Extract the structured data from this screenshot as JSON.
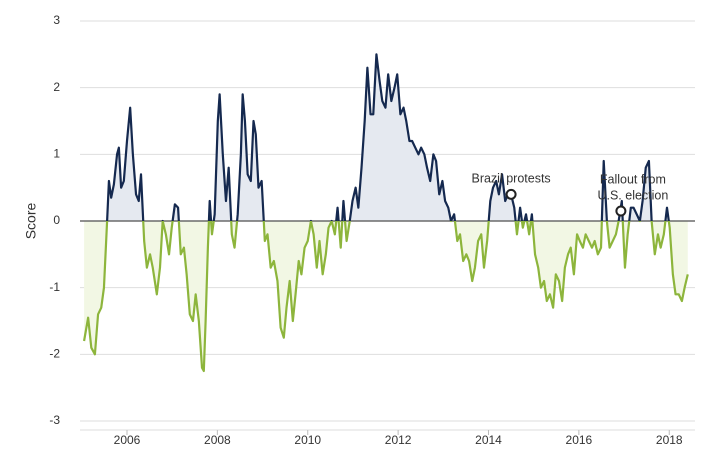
{
  "chart_data": {
    "type": "line",
    "ylabel": "Score",
    "xlim": [
      2004.96,
      2018.57
    ],
    "ylim": [
      -3,
      3
    ],
    "xticks": [
      2006,
      2008,
      2010,
      2012,
      2014,
      2016,
      2018
    ],
    "yticks": [
      -3,
      -2,
      -1,
      0,
      1,
      2,
      3
    ],
    "grid": true,
    "colors": {
      "positive_line": "#15294f",
      "negative_line": "#8db53c",
      "positive_fill": "#e5e9f0",
      "negative_fill": "#f2f7e4",
      "zero_line": "#6b6b6b",
      "grid": "#dedede"
    },
    "x": [
      2005.05,
      2005.14,
      2005.21,
      2005.29,
      2005.36,
      2005.43,
      2005.49,
      2005.56,
      2005.6,
      2005.65,
      2005.71,
      2005.78,
      2005.82,
      2005.87,
      2005.93,
      2006.0,
      2006.07,
      2006.13,
      2006.2,
      2006.26,
      2006.31,
      2006.38,
      2006.44,
      2006.51,
      2006.57,
      2006.66,
      2006.73,
      2006.79,
      2006.86,
      2006.93,
      2006.99,
      2007.06,
      2007.13,
      2007.19,
      2007.26,
      2007.32,
      2007.39,
      2007.46,
      2007.52,
      2007.59,
      2007.66,
      2007.7,
      2007.74,
      2007.79,
      2007.83,
      2007.88,
      2007.94,
      2008.01,
      2008.05,
      2008.12,
      2008.19,
      2008.25,
      2008.32,
      2008.38,
      2008.45,
      2008.52,
      2008.56,
      2008.61,
      2008.67,
      2008.74,
      2008.8,
      2008.85,
      2008.91,
      2008.98,
      2009.05,
      2009.11,
      2009.18,
      2009.25,
      2009.33,
      2009.4,
      2009.47,
      2009.53,
      2009.6,
      2009.67,
      2009.73,
      2009.8,
      2009.86,
      2009.93,
      2010.0,
      2010.07,
      2010.13,
      2010.2,
      2010.26,
      2010.33,
      2010.4,
      2010.46,
      2010.53,
      2010.6,
      2010.66,
      2010.73,
      2010.79,
      2010.86,
      2010.93,
      2010.99,
      2011.06,
      2011.12,
      2011.19,
      2011.26,
      2011.32,
      2011.39,
      2011.45,
      2011.52,
      2011.59,
      2011.65,
      2011.72,
      2011.78,
      2011.85,
      2011.92,
      2011.98,
      2012.05,
      2012.12,
      2012.18,
      2012.25,
      2012.31,
      2012.38,
      2012.45,
      2012.51,
      2012.58,
      2012.64,
      2012.71,
      2012.78,
      2012.84,
      2012.91,
      2012.98,
      2013.04,
      2013.11,
      2013.17,
      2013.24,
      2013.31,
      2013.37,
      2013.44,
      2013.51,
      2013.57,
      2013.64,
      2013.7,
      2013.77,
      2013.84,
      2013.9,
      2013.97,
      2014.04,
      2014.1,
      2014.17,
      2014.23,
      2014.3,
      2014.37,
      2014.43,
      2014.5,
      2014.57,
      2014.63,
      2014.7,
      2014.76,
      2014.83,
      2014.9,
      2014.96,
      2015.03,
      2015.1,
      2015.16,
      2015.23,
      2015.29,
      2015.36,
      2015.43,
      2015.49,
      2015.56,
      2015.63,
      2015.69,
      2015.76,
      2015.82,
      2015.89,
      2015.96,
      2016.02,
      2016.09,
      2016.15,
      2016.22,
      2016.29,
      2016.35,
      2016.42,
      2016.49,
      2016.55,
      2016.62,
      2016.68,
      2016.75,
      2016.82,
      2016.88,
      2016.95,
      2017.02,
      2017.08,
      2017.15,
      2017.21,
      2017.28,
      2017.35,
      2017.41,
      2017.48,
      2017.55,
      2017.61,
      2017.68,
      2017.75,
      2017.81,
      2017.88,
      2017.95,
      2018.01,
      2018.08,
      2018.14,
      2018.21,
      2018.28,
      2018.34,
      2018.41
    ],
    "values": [
      -1.8,
      -1.45,
      -1.9,
      -2.0,
      -1.4,
      -1.3,
      -1.0,
      0.0,
      0.6,
      0.35,
      0.55,
      1.0,
      1.1,
      0.5,
      0.6,
      1.2,
      1.7,
      1.0,
      0.4,
      0.3,
      0.7,
      -0.3,
      -0.7,
      -0.5,
      -0.7,
      -1.1,
      -0.7,
      0.0,
      -0.2,
      -0.5,
      -0.1,
      0.25,
      0.2,
      -0.5,
      -0.4,
      -0.8,
      -1.4,
      -1.5,
      -1.1,
      -1.5,
      -2.2,
      -2.25,
      -1.5,
      -0.4,
      0.3,
      -0.2,
      0.1,
      1.5,
      1.9,
      1.0,
      0.3,
      0.8,
      -0.2,
      -0.4,
      0.1,
      1.0,
      1.9,
      1.5,
      0.7,
      0.6,
      1.5,
      1.3,
      0.5,
      0.6,
      -0.3,
      -0.2,
      -0.7,
      -0.6,
      -0.9,
      -1.6,
      -1.75,
      -1.3,
      -0.9,
      -1.5,
      -1.1,
      -0.6,
      -0.8,
      -0.4,
      -0.3,
      0.0,
      -0.2,
      -0.7,
      -0.3,
      -0.8,
      -0.5,
      -0.1,
      0.0,
      -0.2,
      0.2,
      -0.4,
      0.3,
      -0.3,
      0.0,
      0.3,
      0.5,
      0.2,
      0.8,
      1.5,
      2.3,
      1.6,
      1.6,
      2.5,
      2.1,
      1.8,
      1.7,
      2.2,
      1.8,
      2.0,
      2.2,
      1.6,
      1.7,
      1.5,
      1.2,
      1.2,
      1.1,
      1.0,
      1.1,
      1.0,
      0.8,
      0.6,
      1.0,
      0.9,
      0.4,
      0.6,
      0.3,
      0.2,
      0.0,
      0.1,
      -0.3,
      -0.2,
      -0.6,
      -0.5,
      -0.6,
      -0.9,
      -0.7,
      -0.3,
      -0.2,
      -0.7,
      -0.3,
      0.3,
      0.5,
      0.6,
      0.4,
      0.7,
      0.3,
      0.4,
      0.4,
      0.2,
      -0.2,
      0.2,
      -0.1,
      0.1,
      -0.2,
      0.1,
      -0.5,
      -0.7,
      -1.0,
      -0.9,
      -1.2,
      -1.1,
      -1.3,
      -0.8,
      -0.9,
      -1.2,
      -0.7,
      -0.5,
      -0.4,
      -0.8,
      -0.2,
      -0.3,
      -0.4,
      -0.2,
      -0.3,
      -0.4,
      -0.3,
      -0.5,
      -0.4,
      0.9,
      0.0,
      -0.4,
      -0.3,
      -0.2,
      0.0,
      0.3,
      -0.7,
      -0.2,
      0.2,
      0.2,
      0.1,
      0.0,
      0.3,
      0.8,
      0.9,
      0.0,
      -0.5,
      -0.2,
      -0.4,
      -0.2,
      0.2,
      -0.1,
      -0.8,
      -1.1,
      -1.1,
      -1.2,
      -1.0,
      -0.8
    ],
    "annotations": [
      {
        "lines": [
          "Brazil protests"
        ],
        "x": 2014.5,
        "y": 0.4
      },
      {
        "lines": [
          "Fallout from",
          "U.S. election"
        ],
        "x": 2016.93,
        "y": 0.15
      }
    ]
  }
}
